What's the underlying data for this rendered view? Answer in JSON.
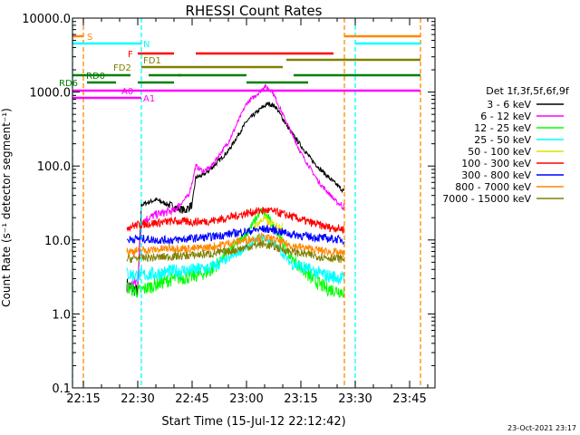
{
  "chart_data": {
    "type": "line",
    "title": "RHESSI Count Rates",
    "xlabel": "Start Time (15-Jul-12 22:12:42)",
    "ylabel": "Count Rate (s⁻¹ detector segment⁻¹)",
    "y_scale": "log",
    "ylim": [
      0.1,
      10000
    ],
    "y_ticks": [
      "0.1",
      "1.0",
      "10.0",
      "100.0",
      "1000.0",
      "10000.0"
    ],
    "xlim": [
      "22:12",
      "23:52"
    ],
    "x_ticks": [
      "22:15",
      "22:30",
      "22:45",
      "23:00",
      "23:15",
      "23:30",
      "23:45"
    ],
    "timestamp": "23-Oct-2021 23:17",
    "legend": {
      "title": "Det 1f,3f,5f,6f,9f",
      "placement": "right",
      "entries": [
        {
          "label": "3 - 6 keV",
          "color": "#000000"
        },
        {
          "label": "6 - 12 keV",
          "color": "#ff00ff"
        },
        {
          "label": "12 - 25 keV",
          "color": "#00ff00"
        },
        {
          "label": "25 - 50 keV",
          "color": "#00ffff"
        },
        {
          "label": "50 - 100 keV",
          "color": "#e0e000"
        },
        {
          "label": "100 - 300 keV",
          "color": "#ff0000"
        },
        {
          "label": "300 - 800 keV",
          "color": "#0000ff"
        },
        {
          "label": "800 - 7000 keV",
          "color": "#ff8800"
        },
        {
          "label": "7000 - 15000 keV",
          "color": "#808000"
        }
      ]
    },
    "flag_bars": [
      {
        "label": "S",
        "color": "#ff8800",
        "segments": [
          [
            "22:12",
            "22:15"
          ],
          [
            "23:27",
            "23:48"
          ]
        ]
      },
      {
        "label": "N",
        "color": "#00ffff",
        "segments": [
          [
            "22:12",
            "22:31"
          ],
          [
            "23:30",
            "23:48"
          ]
        ]
      },
      {
        "label": "F",
        "color": "#ff0000",
        "segments": [
          [
            "22:30",
            "22:40"
          ],
          [
            "22:46",
            "23:24"
          ]
        ]
      },
      {
        "label": "FD1",
        "color": "#808000",
        "segments": [
          [
            "23:11",
            "23:48"
          ]
        ]
      },
      {
        "label": "FD2",
        "color": "#808000",
        "segments": [
          [
            "22:31",
            "23:10"
          ]
        ]
      },
      {
        "label": "RD0",
        "color": "#008000",
        "segments": [
          [
            "22:12",
            "22:28"
          ],
          [
            "22:33",
            "22:42"
          ],
          [
            "22:41",
            "23:00"
          ],
          [
            "23:13",
            "23:48"
          ]
        ]
      },
      {
        "label": "RD6",
        "color": "#008000",
        "segments": [
          [
            "22:16",
            "22:24"
          ],
          [
            "22:30",
            "22:40"
          ],
          [
            "23:00",
            "23:10"
          ],
          [
            "23:10",
            "23:17"
          ]
        ]
      },
      {
        "label": "A0",
        "color": "#ff00ff",
        "segments": [
          [
            "22:12",
            "23:48"
          ]
        ]
      },
      {
        "label": "A1",
        "color": "#ff00ff",
        "segments": [
          [
            "22:12",
            "22:31"
          ]
        ]
      }
    ],
    "vlines": [
      {
        "x": "22:12",
        "color": "#00ffff"
      },
      {
        "x": "22:15",
        "color": "#ff8800"
      },
      {
        "x": "22:31",
        "color": "#00ffff"
      },
      {
        "x": "23:27",
        "color": "#ff8800"
      },
      {
        "x": "23:30",
        "color": "#00ffff"
      },
      {
        "x": "23:48",
        "color": "#ff8800"
      }
    ],
    "series": [
      {
        "name": "3 - 6 keV",
        "color": "#000000",
        "x": [
          "22:27",
          "22:30",
          "22:31",
          "22:35",
          "22:40",
          "22:43",
          "22:45",
          "22:46",
          "22:48",
          "22:50",
          "22:55",
          "23:00",
          "23:04",
          "23:06",
          "23:08",
          "23:12",
          "23:18",
          "23:22",
          "23:25",
          "23:27"
        ],
        "y": [
          2.5,
          2.0,
          30,
          35,
          28,
          25,
          30,
          70,
          75,
          90,
          160,
          400,
          600,
          700,
          640,
          300,
          120,
          75,
          55,
          45
        ]
      },
      {
        "name": "6 - 12 keV",
        "color": "#ff00ff",
        "x": [
          "22:27",
          "22:30",
          "22:31",
          "22:35",
          "22:40",
          "22:44",
          "22:45",
          "22:46",
          "22:48",
          "22:50",
          "22:55",
          "23:00",
          "23:04",
          "23:05",
          "23:07",
          "23:10",
          "23:15",
          "23:20",
          "23:25",
          "23:27"
        ],
        "y": [
          2.2,
          2.8,
          18,
          22,
          25,
          40,
          60,
          100,
          85,
          95,
          210,
          700,
          1050,
          1200,
          1050,
          500,
          150,
          60,
          32,
          28
        ]
      },
      {
        "name": "12 - 25 keV",
        "color": "#00ff00",
        "x": [
          "22:27",
          "22:30",
          "22:35",
          "22:40",
          "22:45",
          "22:50",
          "22:55",
          "23:00",
          "23:04",
          "23:06",
          "23:08",
          "23:12",
          "23:18",
          "23:22",
          "23:27"
        ],
        "y": [
          2.3,
          2.0,
          2.5,
          3.0,
          3.2,
          3.8,
          7.0,
          12.0,
          25.0,
          20.0,
          14.0,
          6.0,
          3.0,
          2.2,
          2.0
        ]
      },
      {
        "name": "25 - 50 keV",
        "color": "#00ffff",
        "x": [
          "22:27",
          "22:30",
          "22:35",
          "22:40",
          "22:45",
          "22:50",
          "22:55",
          "23:00",
          "23:04",
          "23:06",
          "23:08",
          "23:12",
          "23:18",
          "23:22",
          "23:27"
        ],
        "y": [
          3.5,
          3.3,
          3.5,
          3.8,
          3.9,
          4.2,
          5.5,
          8.0,
          11.0,
          10.0,
          8.5,
          5.0,
          3.8,
          3.3,
          3.0
        ]
      },
      {
        "name": "50 - 100 keV",
        "color": "#e0e000",
        "x": [
          "23:02",
          "23:04",
          "23:05",
          "23:06",
          "23:08",
          "23:10"
        ],
        "y": [
          15,
          18,
          20,
          17,
          16,
          15
        ]
      },
      {
        "name": "100 - 300 keV",
        "color": "#ff0000",
        "x": [
          "22:27",
          "22:30",
          "22:35",
          "22:40",
          "22:45",
          "22:50",
          "22:55",
          "23:00",
          "23:04",
          "23:06",
          "23:08",
          "23:12",
          "23:18",
          "23:22",
          "23:27"
        ],
        "y": [
          15,
          16,
          17,
          18,
          17.5,
          18,
          20,
          23,
          25,
          25,
          24,
          21,
          17,
          15,
          14
        ]
      },
      {
        "name": "300 - 800 keV",
        "color": "#0000ff",
        "x": [
          "22:27",
          "22:30",
          "22:35",
          "22:40",
          "22:45",
          "22:50",
          "22:55",
          "23:00",
          "23:04",
          "23:06",
          "23:08",
          "23:12",
          "23:18",
          "23:22",
          "23:27"
        ],
        "y": [
          10,
          10.5,
          10,
          10,
          10.5,
          11,
          12,
          13,
          14,
          14,
          13.5,
          12,
          11,
          10.5,
          10
        ]
      },
      {
        "name": "800 - 7000 keV",
        "color": "#ff8800",
        "x": [
          "22:27",
          "22:30",
          "22:35",
          "22:40",
          "22:45",
          "22:50",
          "22:55",
          "23:00",
          "23:04",
          "23:06",
          "23:08",
          "23:12",
          "23:18",
          "23:22",
          "23:27"
        ],
        "y": [
          7,
          7.2,
          7.4,
          7.8,
          7.6,
          8.0,
          9.0,
          10.0,
          11.0,
          10.5,
          10.0,
          8.5,
          7.5,
          7.0,
          6.5
        ]
      },
      {
        "name": "7000 - 15000 keV",
        "color": "#808000",
        "x": [
          "22:27",
          "22:30",
          "22:35",
          "22:40",
          "22:45",
          "22:50",
          "22:55",
          "23:00",
          "23:04",
          "23:06",
          "23:08",
          "23:12",
          "23:18",
          "23:22",
          "23:27"
        ],
        "y": [
          5.5,
          5.7,
          5.8,
          6.0,
          6.2,
          6.5,
          7.0,
          8.0,
          8.8,
          8.5,
          8.0,
          7.0,
          6.2,
          5.8,
          5.5
        ]
      }
    ]
  }
}
